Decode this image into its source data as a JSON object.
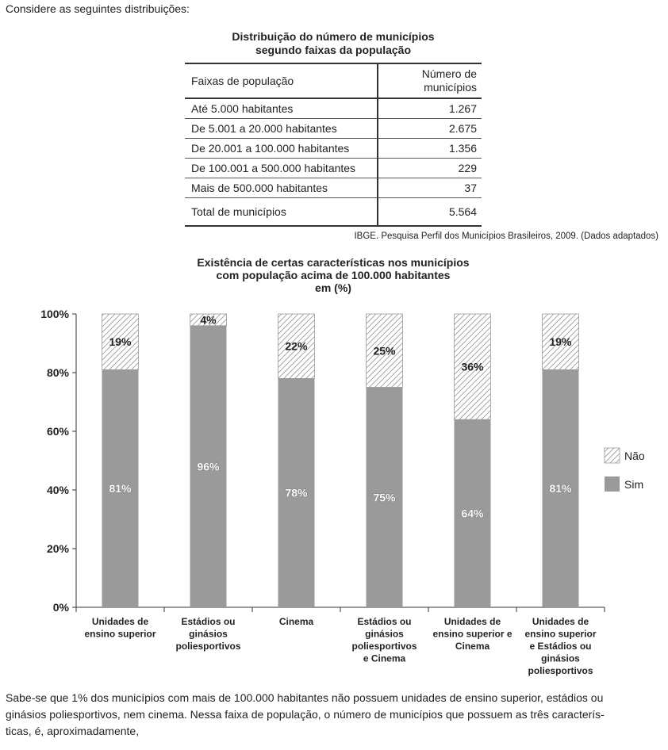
{
  "intro": "Considere as seguintes distribuições:",
  "table": {
    "title_line1": "Distribuição do número de municípios",
    "title_line2": "segundo faixas da população",
    "col1_header": "Faixas de população",
    "col2_header_line1": "Número de",
    "col2_header_line2": "municípios",
    "rows": [
      {
        "label": "Até 5.000 habitantes",
        "value": "1.267"
      },
      {
        "label": "De 5.001 a 20.000 habitantes",
        "value": "2.675"
      },
      {
        "label": "De 20.001 a 100.000 habitantes",
        "value": "1.356"
      },
      {
        "label": "De 100.001 a 500.000 habitantes",
        "value": "229"
      },
      {
        "label": "Mais de 500.000 habitantes",
        "value": "37"
      }
    ],
    "total_label": "Total de municípios",
    "total_value": "5.564",
    "source": "IBGE. Pesquisa Perfil dos Municípios Brasileiros, 2009. (Dados adaptados)"
  },
  "chart_data": {
    "type": "bar",
    "stacked": true,
    "title_lines": [
      "Existência de certas características nos municípios",
      "com população acima de 100.000 habitantes",
      "em (%)"
    ],
    "categories": [
      [
        "Unidades de",
        "ensino superior"
      ],
      [
        "Estádios ou",
        "ginásios",
        "poliesportivos"
      ],
      [
        "Cinema"
      ],
      [
        "Estádios ou",
        "ginásios",
        "poliesportivos",
        "e Cinema"
      ],
      [
        "Unidades de",
        "ensino superior e",
        "Cinema"
      ],
      [
        "Unidades de",
        "ensino superior",
        "e Estádios ou",
        "ginásios",
        "poliesportivos"
      ]
    ],
    "series": [
      {
        "name": "Sim",
        "values": [
          81,
          96,
          78,
          75,
          64,
          81
        ],
        "labels": [
          "81%",
          "96%",
          "78%",
          "75%",
          "64%",
          "81%"
        ],
        "color": "#9a9a9a"
      },
      {
        "name": "Não",
        "values": [
          19,
          4,
          22,
          25,
          36,
          19
        ],
        "labels": [
          "19%",
          "4%",
          "22%",
          "25%",
          "36%",
          "19%"
        ],
        "color": "#ffffff",
        "pattern": "diagonal-hatch"
      }
    ],
    "yticks": [
      "0%",
      "20%",
      "40%",
      "60%",
      "80%",
      "100%"
    ],
    "ylim": [
      0,
      100
    ],
    "legend_position": "right",
    "legend_order": [
      "Não",
      "Sim"
    ]
  },
  "footer": {
    "line1": "Sabe-se que 1% dos municípios com mais de 100.000 habitantes não possuem unidades de ensino superior, estádios ou",
    "line2": "ginásios poliesportivos, nem cinema. Nessa faixa de população, o número de municípios que possuem as três caracterís-",
    "line3": "ticas, é, aproximadamente,"
  }
}
